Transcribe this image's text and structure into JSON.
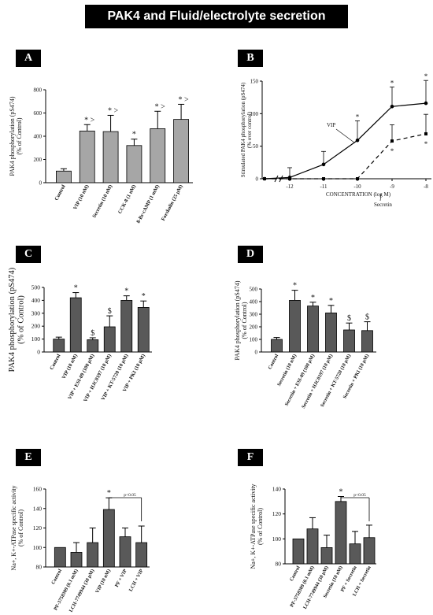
{
  "page": {
    "title": "PAK4 and Fluid/electrolyte secretion"
  },
  "panels": {
    "A": "A",
    "B": "B",
    "C": "C",
    "D": "D",
    "E": "E",
    "F": "F"
  },
  "chart_data": [
    {
      "id": "A",
      "type": "bar",
      "fill": "#a6a6a6",
      "ylabel": "PAK4 phosphorylation (pS474)\n(% of Control)",
      "ylim": [
        0,
        800
      ],
      "yticks": [
        0,
        200,
        400,
        600,
        800
      ],
      "categories": [
        "Control",
        "VIP (10 nM)",
        "Secretin (10 nM)",
        "CCK-8 (1 nM)",
        "8-Br-cAMP (1 mM)",
        "Forskolin (25 μM)"
      ],
      "values": [
        100,
        445,
        440,
        320,
        465,
        545
      ],
      "errors": [
        20,
        55,
        140,
        55,
        150,
        130
      ],
      "annotations": [
        "",
        "* >",
        "* >",
        "*",
        "* >",
        "* >"
      ]
    },
    {
      "id": "B",
      "type": "line",
      "ylabel": "Stimulated PAK4 phosphorylation (pS474)\n(% over control)",
      "xlabel": "CONCENTRATION (log M)",
      "ylim": [
        0,
        150
      ],
      "yticks": [
        0,
        50,
        100,
        150
      ],
      "xticks": [
        "-12",
        "-11",
        "-10",
        "-9",
        "-8"
      ],
      "x_origin": 0,
      "series": [
        {
          "name": "VIP",
          "dash": "",
          "x": [
            -13,
            -12,
            -11,
            -10,
            -9,
            -8
          ],
          "y": [
            0,
            2,
            22,
            59,
            111,
            116
          ],
          "errors": [
            0,
            15,
            20,
            30,
            30,
            35
          ],
          "annotations": [
            "",
            "",
            "",
            "*",
            "*",
            "*"
          ]
        },
        {
          "name": "Secretin",
          "dash": "5,4",
          "x": [
            -13,
            -12,
            -11,
            -10,
            -9,
            -8
          ],
          "y": [
            0,
            0,
            0,
            0,
            58,
            69
          ],
          "errors": [
            0,
            0,
            0,
            0,
            25,
            30
          ],
          "annotations": [
            "",
            "",
            "",
            "",
            "*",
            "*"
          ]
        }
      ]
    },
    {
      "id": "C",
      "type": "bar",
      "fill": "#595959",
      "ylabel": "PAK4 phosphorylation (pS474)\n(% of Control)",
      "ylim": [
        0,
        500
      ],
      "yticks": [
        0,
        100,
        200,
        300,
        400,
        500
      ],
      "categories": [
        "Control",
        "VIP (10 nM)",
        "VIP + ESI-09 (100 μM)",
        "VIP + HJC0197 (10 μM)",
        "VIP + KT-5720 (10 μM)",
        "VIP + PKI (10 μM)"
      ],
      "values": [
        100,
        420,
        95,
        195,
        400,
        345
      ],
      "errors": [
        15,
        40,
        15,
        85,
        35,
        50
      ],
      "annotations": [
        "",
        "*",
        "$",
        "$",
        "*",
        "*"
      ]
    },
    {
      "id": "D",
      "type": "bar",
      "fill": "#595959",
      "ylabel": "PAK4 phosphorylation (pS474)\n(% of Control)",
      "ylim": [
        0,
        500
      ],
      "yticks": [
        0,
        100,
        200,
        300,
        400,
        500
      ],
      "categories": [
        "Control",
        "Secretin (10 nM)",
        "Secretin + ESI-09 (100 μM)",
        "Secretin + HJC0197 (10 μM)",
        "Secretin + KT-5720 (10 μM)",
        "Secretin + PKI (10 μM)"
      ],
      "values": [
        100,
        410,
        365,
        310,
        175,
        170
      ],
      "errors": [
        15,
        80,
        30,
        60,
        55,
        70
      ],
      "annotations": [
        "",
        "*",
        "*",
        "*",
        "$",
        "$"
      ]
    },
    {
      "id": "E",
      "type": "bar",
      "fill": "#595959",
      "ylabel": "Na+, K+-ATPase specific activity\n(% of Control)",
      "ylim": [
        80,
        160
      ],
      "yticks": [
        80,
        100,
        120,
        140,
        160
      ],
      "categories": [
        "Control",
        "PF-3758309 (0.1 mM)",
        "LCH-7749944 (30 μM)",
        "VIP (10 nM)",
        "PF + VIP",
        "LCH + VIP"
      ],
      "values": [
        100,
        95,
        105,
        139,
        111,
        105
      ],
      "errors": [
        0,
        10,
        15,
        12,
        9,
        17
      ],
      "annotations": [
        "",
        "",
        "",
        "*",
        "",
        ""
      ],
      "bracket": {
        "from": 3,
        "to": 5,
        "label": "p<0.05"
      }
    },
    {
      "id": "F",
      "type": "bar",
      "fill": "#595959",
      "ylabel": "Na+, K+-ATPase specific activity\n(% of Control)",
      "ylim": [
        80,
        140
      ],
      "yticks": [
        80,
        100,
        120,
        140
      ],
      "categories": [
        "Control",
        "PF-3758309 (0.1 mM)",
        "LCH-7749944 (30 μM)",
        "Secretin (10 nM)",
        "PF + Secretin",
        "LCH + Secretin"
      ],
      "values": [
        100,
        108,
        93,
        130,
        96,
        101
      ],
      "errors": [
        0,
        9,
        10,
        4,
        10,
        10
      ],
      "annotations": [
        "",
        "",
        "",
        "*",
        "",
        ""
      ],
      "bracket": {
        "from": 3,
        "to": 5,
        "label": "p<0.05"
      }
    }
  ]
}
